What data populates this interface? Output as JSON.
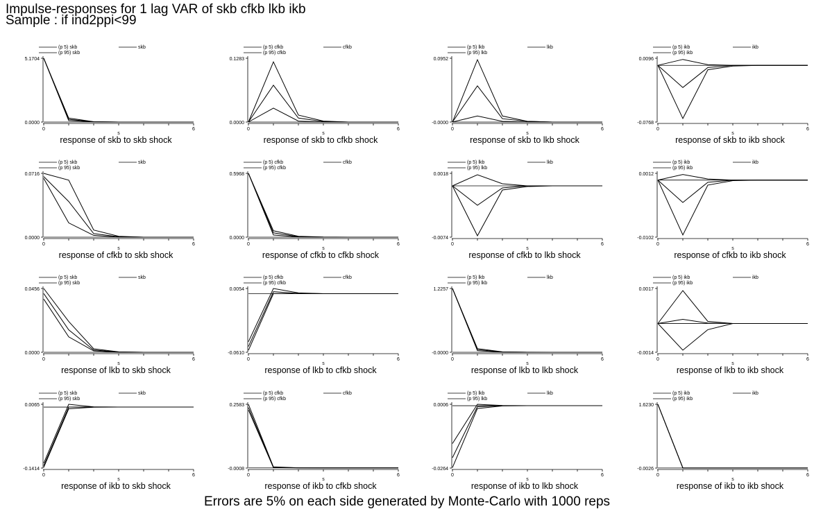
{
  "title": "Impulse-responses for 1 lag VAR of skb cfkb lkb ikb",
  "subtitle": "Sample : if ind2ppi<99",
  "footnote": "Errors are 5% on each side generated by Monte-Carlo with 1000 reps",
  "chart_data": [
    {
      "type": "line",
      "title": "response of skb to skb shock",
      "xlabel": "s",
      "x": [
        0,
        1,
        2,
        3,
        4,
        5,
        6
      ],
      "ylim": [
        0.0,
        5.1704
      ],
      "yticks": [
        "0.0000",
        "5.1704"
      ],
      "xticks": [
        "0",
        "6"
      ],
      "legend": [
        "(p 5) skb",
        "skb",
        "(p 95) skb"
      ],
      "series": [
        {
          "name": "skb",
          "values": [
            5.1704,
            0.22,
            0.02,
            0,
            0,
            0,
            0
          ]
        },
        {
          "name": "(p 5) skb",
          "values": [
            5.1704,
            0.12,
            0.01,
            0,
            0,
            0,
            0
          ]
        },
        {
          "name": "(p 95) skb",
          "values": [
            5.1704,
            0.32,
            0.03,
            0,
            0,
            0,
            0
          ]
        }
      ]
    },
    {
      "type": "line",
      "title": "response of skb to cfkb shock",
      "xlabel": "s",
      "x": [
        0,
        1,
        2,
        3,
        4,
        5,
        6
      ],
      "ylim": [
        0.0,
        0.1283
      ],
      "yticks": [
        "0.0000",
        "0.1283"
      ],
      "xticks": [
        "0",
        "6"
      ],
      "legend": [
        "(p 5) cfkb",
        "cfkb",
        "(p 95) cfkb"
      ],
      "series": [
        {
          "name": "cfkb",
          "values": [
            0,
            0.074,
            0.008,
            0.001,
            0,
            0,
            0
          ]
        },
        {
          "name": "(p 5) cfkb",
          "values": [
            0,
            0.028,
            0.002,
            0,
            0,
            0,
            0
          ]
        },
        {
          "name": "(p 95) cfkb",
          "values": [
            0,
            0.121,
            0.014,
            0.002,
            0,
            0,
            0
          ]
        }
      ]
    },
    {
      "type": "line",
      "title": "response of skb to lkb shock",
      "xlabel": "s",
      "x": [
        0,
        1,
        2,
        3,
        4,
        5,
        6
      ],
      "ylim": [
        -0.0,
        0.0952
      ],
      "yticks": [
        "-0.0000",
        "0.0952"
      ],
      "xticks": [
        "0",
        "6"
      ],
      "legend": [
        "(p 5) lkb",
        "lkb",
        "(p 95) lkb"
      ],
      "series": [
        {
          "name": "lkb",
          "values": [
            0,
            0.054,
            0.005,
            0.001,
            0,
            0,
            0
          ]
        },
        {
          "name": "(p 5) lkb",
          "values": [
            0,
            0.009,
            0.001,
            0,
            0,
            0,
            0
          ]
        },
        {
          "name": "(p 95) lkb",
          "values": [
            0,
            0.093,
            0.009,
            0.001,
            0,
            0,
            0
          ]
        }
      ]
    },
    {
      "type": "line",
      "title": "response of skb to ikb shock",
      "xlabel": "s",
      "x": [
        0,
        1,
        2,
        3,
        4,
        5,
        6
      ],
      "ylim": [
        -0.0768,
        0.0096
      ],
      "yticks": [
        "-0.0768",
        "0.0096"
      ],
      "xticks": [
        "0",
        "6"
      ],
      "legend": [
        "(p 5) ikb",
        "ikb",
        "(p 95) ikb"
      ],
      "series": [
        {
          "name": "ikb",
          "values": [
            0,
            -0.03,
            -0.003,
            0,
            0,
            0,
            0
          ]
        },
        {
          "name": "(p 5) ikb",
          "values": [
            0,
            -0.072,
            -0.006,
            -0.001,
            0,
            0,
            0
          ]
        },
        {
          "name": "(p 95) ikb",
          "values": [
            0,
            0.008,
            0.001,
            0,
            0,
            0,
            0
          ]
        }
      ]
    },
    {
      "type": "line",
      "title": "response of cfkb to skb shock",
      "xlabel": "s",
      "x": [
        0,
        1,
        2,
        3,
        4,
        5,
        6
      ],
      "ylim": [
        0.0,
        0.0716
      ],
      "yticks": [
        "0.0000",
        "0.0716"
      ],
      "xticks": [
        "0",
        "6"
      ],
      "legend": [
        "(p 5) skb",
        "skb",
        "(p 95) skb"
      ],
      "series": [
        {
          "name": "skb",
          "values": [
            0.068,
            0.04,
            0.004,
            0.0005,
            0,
            0,
            0
          ]
        },
        {
          "name": "(p 5) skb",
          "values": [
            0.066,
            0.016,
            0.002,
            0,
            0,
            0,
            0
          ]
        },
        {
          "name": "(p 95) skb",
          "values": [
            0.0716,
            0.064,
            0.008,
            0.001,
            0,
            0,
            0
          ]
        }
      ]
    },
    {
      "type": "line",
      "title": "response of cfkb to cfkb shock",
      "xlabel": "s",
      "x": [
        0,
        1,
        2,
        3,
        4,
        5,
        6
      ],
      "ylim": [
        0.0,
        0.5968
      ],
      "yticks": [
        "0.0000",
        "0.5968"
      ],
      "xticks": [
        "0",
        "6"
      ],
      "legend": [
        "(p 5) cfkb",
        "cfkb",
        "(p 95) cfkb"
      ],
      "series": [
        {
          "name": "cfkb",
          "values": [
            0.5968,
            0.04,
            0.004,
            0,
            0,
            0,
            0
          ]
        },
        {
          "name": "(p 5) cfkb",
          "values": [
            0.5968,
            0.02,
            0.002,
            0,
            0,
            0,
            0
          ]
        },
        {
          "name": "(p 95) cfkb",
          "values": [
            0.5968,
            0.06,
            0.008,
            0.001,
            0,
            0,
            0
          ]
        }
      ]
    },
    {
      "type": "line",
      "title": "response of cfkb to lkb shock",
      "xlabel": "s",
      "x": [
        0,
        1,
        2,
        3,
        4,
        5,
        6
      ],
      "ylim": [
        -0.0074,
        0.0018
      ],
      "yticks": [
        "-0.0074",
        "0.0018"
      ],
      "xticks": [
        "0",
        "6"
      ],
      "legend": [
        "(p 5) lkb",
        "lkb",
        "(p 95) lkb"
      ],
      "series": [
        {
          "name": "lkb",
          "values": [
            0,
            -0.0028,
            -0.0003,
            0,
            0,
            0,
            0
          ]
        },
        {
          "name": "(p 5) lkb",
          "values": [
            0,
            -0.0072,
            -0.0006,
            -0.0001,
            0,
            0,
            0
          ]
        },
        {
          "name": "(p 95) lkb",
          "values": [
            0,
            0.0016,
            0.0003,
            0,
            0,
            0,
            0
          ]
        }
      ]
    },
    {
      "type": "line",
      "title": "response of cfkb to ikb shock",
      "xlabel": "s",
      "x": [
        0,
        1,
        2,
        3,
        4,
        5,
        6
      ],
      "ylim": [
        -0.0102,
        0.0012
      ],
      "yticks": [
        "-0.0102",
        "0.0012"
      ],
      "xticks": [
        "0",
        "6"
      ],
      "legend": [
        "(p 5) ikb",
        "ikb",
        "(p 95) ikb"
      ],
      "series": [
        {
          "name": "ikb",
          "values": [
            0,
            -0.004,
            -0.0004,
            0,
            0,
            0,
            0
          ]
        },
        {
          "name": "(p 5) ikb",
          "values": [
            0,
            -0.0098,
            -0.0009,
            -0.0001,
            0,
            0,
            0
          ]
        },
        {
          "name": "(p 95) ikb",
          "values": [
            0,
            0.001,
            0.0002,
            0,
            0,
            0,
            0
          ]
        }
      ]
    },
    {
      "type": "line",
      "title": "response of lkb to skb shock",
      "xlabel": "s",
      "x": [
        0,
        1,
        2,
        3,
        4,
        5,
        6
      ],
      "ylim": [
        0.0,
        0.0456
      ],
      "yticks": [
        "0.0000",
        "0.0456"
      ],
      "xticks": [
        "0",
        "6"
      ],
      "legend": [
        "(p 5) skb",
        "skb",
        "(p 95) skb"
      ],
      "series": [
        {
          "name": "skb",
          "values": [
            0.042,
            0.016,
            0.0016,
            0.0002,
            0,
            0,
            0
          ]
        },
        {
          "name": "(p 5) skb",
          "values": [
            0.038,
            0.011,
            0.001,
            0,
            0,
            0,
            0
          ]
        },
        {
          "name": "(p 95) skb",
          "values": [
            0.0456,
            0.022,
            0.0025,
            0.0003,
            0,
            0,
            0
          ]
        }
      ]
    },
    {
      "type": "line",
      "title": "response of lkb to cfkb shock",
      "xlabel": "s",
      "x": [
        0,
        1,
        2,
        3,
        4,
        5,
        6
      ],
      "ylim": [
        -0.061,
        0.0054
      ],
      "yticks": [
        "-0.0610",
        "0.0054"
      ],
      "xticks": [
        "0",
        "6"
      ],
      "legend": [
        "(p 5) cfkb",
        "cfkb",
        "(p 95) cfkb"
      ],
      "series": [
        {
          "name": "cfkb",
          "values": [
            -0.055,
            0.002,
            0.0003,
            0,
            0,
            0,
            0
          ]
        },
        {
          "name": "(p 5) cfkb",
          "values": [
            -0.059,
            0.0,
            0.0001,
            0,
            0,
            0,
            0
          ]
        },
        {
          "name": "(p 95) cfkb",
          "values": [
            -0.05,
            0.0054,
            0.0008,
            0,
            0,
            0,
            0
          ]
        }
      ]
    },
    {
      "type": "line",
      "title": "response of lkb to lkb shock",
      "xlabel": "s",
      "x": [
        0,
        1,
        2,
        3,
        4,
        5,
        6
      ],
      "ylim": [
        -0.0,
        1.2257
      ],
      "yticks": [
        "-0.0000",
        "1.2257"
      ],
      "xticks": [
        "0",
        "6"
      ],
      "legend": [
        "(p 5) lkb",
        "lkb",
        "(p 95) lkb"
      ],
      "series": [
        {
          "name": "lkb",
          "values": [
            1.2257,
            0.05,
            0.005,
            0,
            0,
            0,
            0
          ]
        },
        {
          "name": "(p 5) lkb",
          "values": [
            1.2257,
            0.03,
            0.002,
            0,
            0,
            0,
            0
          ]
        },
        {
          "name": "(p 95) lkb",
          "values": [
            1.2257,
            0.07,
            0.008,
            0.001,
            0,
            0,
            0
          ]
        }
      ]
    },
    {
      "type": "line",
      "title": "response of lkb to ikb shock",
      "xlabel": "s",
      "x": [
        0,
        1,
        2,
        3,
        4,
        5,
        6
      ],
      "ylim": [
        -0.0014,
        0.0017
      ],
      "yticks": [
        "-0.0014",
        "0.0017"
      ],
      "xticks": [
        "0",
        "6"
      ],
      "legend": [
        "(p 5) ikb",
        "ikb",
        "(p 95) ikb"
      ],
      "series": [
        {
          "name": "ikb",
          "values": [
            0,
            0.0002,
            2e-05,
            0,
            0,
            0,
            0
          ]
        },
        {
          "name": "(p 5) ikb",
          "values": [
            0,
            -0.0013,
            -0.0003,
            0,
            0,
            0,
            0
          ]
        },
        {
          "name": "(p 95) ikb",
          "values": [
            0,
            0.0016,
            0.0001,
            0,
            0,
            0,
            0
          ]
        }
      ]
    },
    {
      "type": "line",
      "title": "response of ikb to skb shock",
      "xlabel": "s",
      "x": [
        0,
        1,
        2,
        3,
        4,
        5,
        6
      ],
      "ylim": [
        -0.1414,
        0.0065
      ],
      "yticks": [
        "-0.1414",
        "0.0065"
      ],
      "xticks": [
        "0",
        "6"
      ],
      "legend": [
        "(p 5) skb",
        "skb",
        "(p 95) skb"
      ],
      "series": [
        {
          "name": "skb",
          "values": [
            -0.136,
            0.0,
            0.0002,
            0,
            0,
            0,
            0
          ]
        },
        {
          "name": "(p 5) skb",
          "values": [
            -0.14,
            -0.004,
            -0.0002,
            0,
            0,
            0,
            0
          ]
        },
        {
          "name": "(p 95) skb",
          "values": [
            -0.13,
            0.0065,
            0.0006,
            0,
            0,
            0,
            0
          ]
        }
      ]
    },
    {
      "type": "line",
      "title": "response of ikb to cfkb shock",
      "xlabel": "s",
      "x": [
        0,
        1,
        2,
        3,
        4,
        5,
        6
      ],
      "ylim": [
        -0.0008,
        0.2583
      ],
      "yticks": [
        "-0.0008",
        "0.2583"
      ],
      "xticks": [
        "0",
        "6"
      ],
      "legend": [
        "(p 5) cfkb",
        "cfkb",
        "(p 95) cfkb"
      ],
      "series": [
        {
          "name": "cfkb",
          "values": [
            0.245,
            0.002,
            0.0002,
            0,
            0,
            0,
            0
          ]
        },
        {
          "name": "(p 5) cfkb",
          "values": [
            0.235,
            0.001,
            0.0001,
            0,
            0,
            0,
            0
          ]
        },
        {
          "name": "(p 95) cfkb",
          "values": [
            0.2583,
            0.004,
            0.0004,
            0,
            0,
            0,
            0
          ]
        }
      ]
    },
    {
      "type": "line",
      "title": "response of ikb to lkb shock",
      "xlabel": "s",
      "x": [
        0,
        1,
        2,
        3,
        4,
        5,
        6
      ],
      "ylim": [
        -0.0264,
        0.0006
      ],
      "yticks": [
        "-0.0264",
        "0.0006"
      ],
      "xticks": [
        "0",
        "6"
      ],
      "legend": [
        "(p 5) lkb",
        "lkb",
        "(p 95) lkb"
      ],
      "series": [
        {
          "name": "lkb",
          "values": [
            -0.022,
            -0.0004,
            0,
            0,
            0,
            0,
            0
          ]
        },
        {
          "name": "(p 5) lkb",
          "values": [
            -0.0262,
            -0.0012,
            -0.0001,
            0,
            0,
            0,
            0
          ]
        },
        {
          "name": "(p 95) lkb",
          "values": [
            -0.016,
            0.0006,
            0.0001,
            0,
            0,
            0,
            0
          ]
        }
      ]
    },
    {
      "type": "line",
      "title": "response of ikb to ikb shock",
      "xlabel": "s",
      "x": [
        0,
        1,
        2,
        3,
        4,
        5,
        6
      ],
      "ylim": [
        -0.0026,
        1.623
      ],
      "yticks": [
        "-0.0026",
        "1.6230"
      ],
      "xticks": [
        "0",
        "6"
      ],
      "legend": [
        "(p 5) ikb",
        "ikb",
        "(p 95) ikb"
      ],
      "series": [
        {
          "name": "ikb",
          "values": [
            1.623,
            0.0,
            0,
            0,
            0,
            0,
            0
          ]
        },
        {
          "name": "(p 5) ikb",
          "values": [
            1.623,
            -0.0015,
            0,
            0,
            0,
            0,
            0
          ]
        },
        {
          "name": "(p 95) ikb",
          "values": [
            1.623,
            0.002,
            0,
            0,
            0,
            0,
            0
          ]
        }
      ]
    }
  ]
}
